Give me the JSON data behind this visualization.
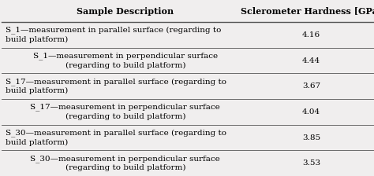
{
  "col1_header": "Sample Description",
  "col2_header": "Sclerometer Hardness [GPa]",
  "rows": [
    {
      "line1": "S_1—measurement in parallel surface (regarding to",
      "line2": "build platform)",
      "value": "4.16",
      "text_align": "left"
    },
    {
      "line1": "S_1—measurement in perpendicular surface",
      "line2": "(regarding to build platform)",
      "value": "4.44",
      "text_align": "center"
    },
    {
      "line1": "S_17—measurement in parallel surface (regarding to",
      "line2": "build platform)",
      "value": "3.67",
      "text_align": "left"
    },
    {
      "line1": "S_17—measurement in perpendicular surface",
      "line2": "(regarding to build platform)",
      "value": "4.04",
      "text_align": "center"
    },
    {
      "line1": "S_30—measurement in parallel surface (regarding to",
      "line2": "build platform)",
      "value": "3.85",
      "text_align": "left"
    },
    {
      "line1": "S_30—measurement in perpendicular surface",
      "line2": "(regarding to build platform)",
      "value": "3.53",
      "text_align": "center"
    }
  ],
  "bg_color": "#f0eeee",
  "line_color": "#555555",
  "header_fontsize": 8.0,
  "cell_fontsize": 7.5,
  "col_split": 0.665,
  "fig_width": 4.74,
  "fig_height": 2.24,
  "dpi": 100
}
